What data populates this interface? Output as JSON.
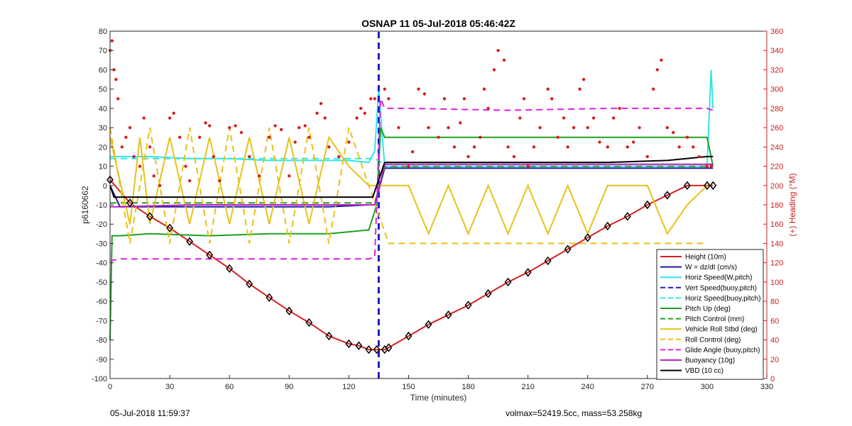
{
  "chart_data": {
    "type": "line",
    "title": "OSNAP 11 05-Jul-2018 05:46:42Z",
    "xlabel": "Time (minutes)",
    "ylabel": "p6160662",
    "y2label": "(+) Heading (°M)",
    "xlim": [
      0,
      330
    ],
    "ylim": [
      -100,
      80
    ],
    "y2lim": [
      0,
      360
    ],
    "xticks": [
      0,
      30,
      60,
      90,
      120,
      150,
      180,
      210,
      240,
      270,
      300,
      330
    ],
    "yticks": [
      -100,
      -90,
      -80,
      -70,
      -60,
      -50,
      -40,
      -30,
      -20,
      -10,
      0,
      10,
      20,
      30,
      40,
      50,
      60,
      70,
      80
    ],
    "y2ticks": [
      0,
      20,
      40,
      60,
      80,
      100,
      120,
      140,
      160,
      180,
      200,
      220,
      240,
      260,
      280,
      300,
      320,
      340,
      360
    ],
    "grid": false,
    "legend_position": "bottom-right",
    "apogee_marker_x": 135,
    "series": [
      {
        "name": "Height (10m)",
        "color": "#d62020",
        "style": "solid",
        "x": [
          0,
          10,
          20,
          30,
          40,
          50,
          60,
          70,
          80,
          90,
          100,
          110,
          120,
          125,
          130,
          134,
          138,
          140,
          150,
          160,
          170,
          180,
          190,
          200,
          210,
          220,
          230,
          240,
          250,
          260,
          270,
          280,
          290,
          300,
          303
        ],
        "y": [
          3,
          -9,
          -16,
          -22,
          -29,
          -36,
          -43,
          -51,
          -58,
          -65,
          -71,
          -78,
          -82,
          -83,
          -85,
          -85,
          -85,
          -84,
          -78,
          -72,
          -67,
          -62,
          -56,
          -50,
          -45,
          -39,
          -33,
          -27,
          -21,
          -16,
          -10,
          -5,
          0,
          0,
          0
        ]
      },
      {
        "name": "W = dz/dt (cm/s)",
        "color": "#1a1aa6",
        "style": "solid",
        "x": [
          0,
          5,
          20,
          50,
          80,
          110,
          130,
          133,
          138,
          150,
          200,
          250,
          300,
          303
        ],
        "y": [
          0,
          -11,
          -11,
          -11,
          -11,
          -11,
          -10,
          -10,
          9,
          9,
          9,
          9,
          9,
          9
        ]
      },
      {
        "name": "Horiz Speed(W,pitch)",
        "color": "#30e6e6",
        "style": "solid",
        "x": [
          0,
          3,
          20,
          40,
          60,
          80,
          100,
          120,
          130,
          133,
          135,
          138,
          150,
          200,
          250,
          300,
          302,
          303
        ],
        "y": [
          15,
          15,
          15,
          14,
          14,
          13,
          13,
          13,
          12,
          18,
          50,
          10,
          10,
          10,
          10,
          10,
          60,
          40
        ]
      },
      {
        "name": "Vert Speed(buoy,pitch)",
        "color": "#1a1ad0",
        "style": "dashed",
        "x": [
          135,
          135
        ],
        "y": [
          -100,
          80
        ]
      },
      {
        "name": "Horiz Speed(buoy,pitch)",
        "color": "#30e6e6",
        "style": "dashed",
        "x": [
          0,
          133,
          138,
          303
        ],
        "y": [
          14,
          14,
          11,
          11
        ]
      },
      {
        "name": "Pitch Up (deg)",
        "color": "#20a020",
        "style": "solid",
        "x": [
          0,
          1,
          5,
          20,
          50,
          80,
          110,
          130,
          134,
          136,
          138,
          150,
          200,
          250,
          300,
          303
        ],
        "y": [
          -80,
          -26,
          -26,
          -25,
          -26,
          -25,
          -25,
          -23,
          -10,
          30,
          25,
          25,
          25,
          25,
          25,
          10
        ]
      },
      {
        "name": "Pitch Control (mm)",
        "color": "#20a020",
        "style": "dashed",
        "x": [
          0,
          133,
          138,
          303
        ],
        "y": [
          -9,
          -9,
          10,
          10
        ]
      },
      {
        "name": "Vehicle Roll Stbd (deg)",
        "color": "#e6c21a",
        "style": "solid",
        "x": [
          0,
          10,
          15,
          20,
          30,
          40,
          50,
          60,
          70,
          80,
          90,
          100,
          110,
          120,
          130,
          140,
          150,
          160,
          170,
          180,
          190,
          200,
          210,
          220,
          230,
          240,
          250,
          260,
          270,
          280,
          290,
          300
        ],
        "y": [
          25,
          -20,
          25,
          -20,
          25,
          -20,
          25,
          -20,
          25,
          -20,
          25,
          -20,
          25,
          10,
          0,
          0,
          0,
          -25,
          0,
          -25,
          0,
          -25,
          0,
          -25,
          0,
          -25,
          0,
          0,
          0,
          -25,
          -10,
          0
        ]
      },
      {
        "name": "Roll Control (deg)",
        "color": "#e6c21a",
        "style": "dashed",
        "x": [
          0,
          10,
          20,
          30,
          40,
          50,
          60,
          70,
          80,
          90,
          100,
          110,
          120,
          140,
          160,
          180,
          200,
          220,
          240,
          260,
          280,
          300
        ],
        "y": [
          30,
          -30,
          30,
          -30,
          30,
          -30,
          30,
          -30,
          30,
          -30,
          30,
          -30,
          30,
          -30,
          -30,
          -30,
          -30,
          -30,
          -30,
          -30,
          -30,
          -30
        ]
      },
      {
        "name": "Glide Angle (buoy,pitch)",
        "color": "#e020e0",
        "style": "dashed",
        "x": [
          0,
          5,
          40,
          80,
          120,
          130,
          133,
          136,
          138,
          150,
          200,
          250,
          300,
          303
        ],
        "y": [
          -39,
          -38,
          -38,
          -38,
          -38,
          -38,
          -37,
          45,
          40,
          40,
          39,
          40,
          40,
          39
        ]
      },
      {
        "name": "Buoyancy (10g)",
        "color": "#c020c0",
        "style": "solid",
        "x": [
          0,
          5,
          40,
          80,
          120,
          133,
          138,
          150,
          200,
          250,
          300,
          303
        ],
        "y": [
          -11,
          -11,
          -10,
          -10,
          -10,
          -10,
          11,
          11,
          11,
          11,
          11,
          11
        ]
      },
      {
        "name": "VBD (10 cc)",
        "color": "#000000",
        "style": "solid",
        "x": [
          0,
          2,
          5,
          130,
          132,
          138,
          250,
          280,
          300,
          303
        ],
        "y": [
          0,
          -6,
          -6,
          -6,
          -6,
          12,
          12,
          13,
          15,
          15
        ]
      }
    ],
    "heading_points": [
      [
        0,
        340
      ],
      [
        1,
        350
      ],
      [
        2,
        320
      ],
      [
        3,
        310
      ],
      [
        4,
        290
      ],
      [
        6,
        240
      ],
      [
        8,
        250
      ],
      [
        10,
        260
      ],
      [
        12,
        230
      ],
      [
        15,
        220
      ],
      [
        17,
        270
      ],
      [
        20,
        240
      ],
      [
        22,
        210
      ],
      [
        25,
        200
      ],
      [
        30,
        270
      ],
      [
        32,
        275
      ],
      [
        35,
        250
      ],
      [
        38,
        220
      ],
      [
        40,
        205
      ],
      [
        45,
        250
      ],
      [
        48,
        265
      ],
      [
        50,
        262
      ],
      [
        52,
        230
      ],
      [
        55,
        205
      ],
      [
        60,
        260
      ],
      [
        63,
        262
      ],
      [
        66,
        255
      ],
      [
        70,
        230
      ],
      [
        75,
        210
      ],
      [
        80,
        250
      ],
      [
        83,
        262
      ],
      [
        86,
        258
      ],
      [
        90,
        210
      ],
      [
        93,
        245
      ],
      [
        95,
        260
      ],
      [
        98,
        262
      ],
      [
        100,
        250
      ],
      [
        104,
        275
      ],
      [
        106,
        285
      ],
      [
        108,
        270
      ],
      [
        110,
        240
      ],
      [
        115,
        230
      ],
      [
        120,
        245
      ],
      [
        124,
        270
      ],
      [
        126,
        280
      ],
      [
        128,
        275
      ],
      [
        131,
        290
      ],
      [
        133,
        290
      ],
      [
        138,
        300
      ],
      [
        140,
        290
      ],
      [
        145,
        260
      ],
      [
        150,
        220
      ],
      [
        152,
        235
      ],
      [
        155,
        300
      ],
      [
        158,
        295
      ],
      [
        160,
        260
      ],
      [
        165,
        250
      ],
      [
        168,
        290
      ],
      [
        170,
        260
      ],
      [
        173,
        240
      ],
      [
        176,
        265
      ],
      [
        178,
        290
      ],
      [
        180,
        230
      ],
      [
        183,
        240
      ],
      [
        186,
        250
      ],
      [
        188,
        300
      ],
      [
        190,
        280
      ],
      [
        193,
        320
      ],
      [
        195,
        340
      ],
      [
        198,
        330
      ],
      [
        200,
        240
      ],
      [
        203,
        230
      ],
      [
        206,
        270
      ],
      [
        208,
        290
      ],
      [
        210,
        220
      ],
      [
        213,
        240
      ],
      [
        216,
        260
      ],
      [
        220,
        300
      ],
      [
        222,
        290
      ],
      [
        225,
        250
      ],
      [
        228,
        270
      ],
      [
        230,
        240
      ],
      [
        233,
        260
      ],
      [
        236,
        300
      ],
      [
        238,
        310
      ],
      [
        240,
        260
      ],
      [
        243,
        270
      ],
      [
        246,
        245
      ],
      [
        250,
        240
      ],
      [
        253,
        270
      ],
      [
        256,
        280
      ],
      [
        260,
        240
      ],
      [
        263,
        245
      ],
      [
        266,
        260
      ],
      [
        270,
        230
      ],
      [
        273,
        300
      ],
      [
        275,
        320
      ],
      [
        277,
        330
      ],
      [
        280,
        260
      ],
      [
        283,
        255
      ],
      [
        286,
        240
      ],
      [
        290,
        250
      ],
      [
        293,
        240
      ],
      [
        296,
        230
      ],
      [
        300,
        220
      ],
      [
        302,
        220
      ]
    ],
    "annotations": {
      "left": "05-Jul-2018 11:59:37",
      "right": "volmax=52419.5cc, mass=53.258kg"
    }
  }
}
